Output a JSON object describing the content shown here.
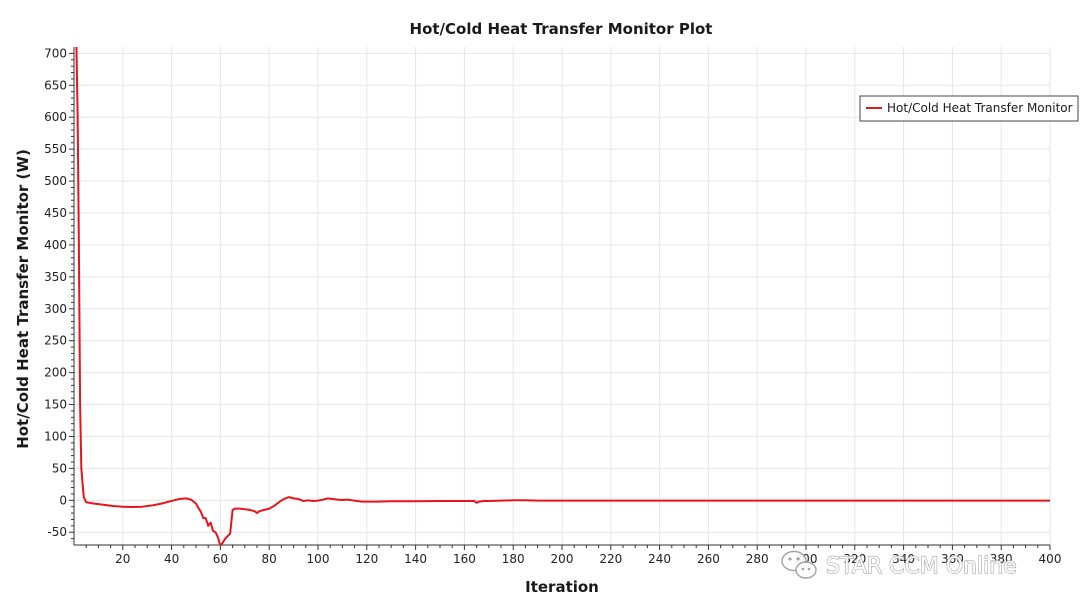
{
  "chart_data": {
    "type": "line",
    "title": "Hot/Cold Heat Transfer Monitor Plot",
    "xlabel": "Iteration",
    "ylabel": "Hot/Cold Heat Transfer Monitor (W)",
    "xlim": [
      0,
      400
    ],
    "ylim": [
      -70,
      710
    ],
    "xticks": [
      20,
      40,
      60,
      80,
      100,
      120,
      140,
      160,
      180,
      200,
      220,
      240,
      260,
      280,
      300,
      320,
      340,
      360,
      380,
      400
    ],
    "xtick_labels": [
      "20",
      "40",
      "60",
      "80",
      "100",
      "120",
      "140",
      "160",
      "180",
      "200",
      "220",
      "240",
      "260",
      "280",
      "300",
      "320",
      "340",
      "360",
      "380",
      "400"
    ],
    "yticks": [
      -50,
      0,
      50,
      100,
      150,
      200,
      250,
      300,
      350,
      400,
      450,
      500,
      550,
      600,
      650,
      700
    ],
    "ytick_labels": [
      "-50",
      "0",
      "50",
      "100",
      "150",
      "200",
      "250",
      "300",
      "350",
      "400",
      "450",
      "500",
      "550",
      "600",
      "650",
      "700"
    ],
    "grid": true,
    "legend_position": "top-right",
    "series": [
      {
        "name": "Hot/Cold Heat Transfer Monitor",
        "color": "#e8141b",
        "x": [
          1,
          1.5,
          2,
          2.5,
          3,
          4,
          5,
          8,
          12,
          16,
          20,
          24,
          28,
          32,
          36,
          40,
          43,
          46,
          48,
          50,
          51,
          52,
          53,
          54,
          55,
          56,
          57,
          58,
          59,
          60,
          62,
          64,
          65,
          66,
          68,
          70,
          72,
          74,
          75,
          76,
          78,
          80,
          82,
          84,
          86,
          88,
          90,
          92,
          94,
          96,
          98,
          100,
          102,
          104,
          106,
          108,
          110,
          112,
          114,
          116,
          118,
          120,
          125,
          130,
          140,
          150,
          160,
          164,
          165,
          166,
          168,
          170,
          175,
          180,
          185,
          190,
          195,
          200,
          220,
          240,
          260,
          280,
          300,
          320,
          340,
          360,
          380,
          400
        ],
        "y": [
          710,
          600,
          400,
          150,
          50,
          5,
          -3,
          -5,
          -7,
          -9,
          -10,
          -10.5,
          -10,
          -8,
          -5,
          -1,
          2,
          3,
          1,
          -5,
          -12,
          -18,
          -28,
          -28,
          -40,
          -35,
          -48,
          -50,
          -58,
          -72,
          -60,
          -52,
          -15,
          -13,
          -13,
          -14,
          -15,
          -17,
          -20,
          -17,
          -15,
          -13,
          -9,
          -3,
          2,
          5,
          3,
          2,
          -1,
          0,
          -1,
          -0.5,
          1,
          3,
          2,
          1,
          0.5,
          1,
          0,
          -1,
          -2,
          -2,
          -2,
          -1.5,
          -1.5,
          -1,
          -1,
          -1,
          -4,
          -2,
          -1,
          -1,
          -0.5,
          0,
          0,
          -0.5,
          -0.5,
          -0.5,
          -0.5,
          -0.5,
          -0.5,
          -0.5,
          -0.5,
          -0.5,
          -0.5,
          -0.5,
          -0.5,
          -0.5
        ]
      }
    ]
  },
  "watermark": {
    "text": "STAR CCM Online",
    "icon": "wechat-icon"
  }
}
